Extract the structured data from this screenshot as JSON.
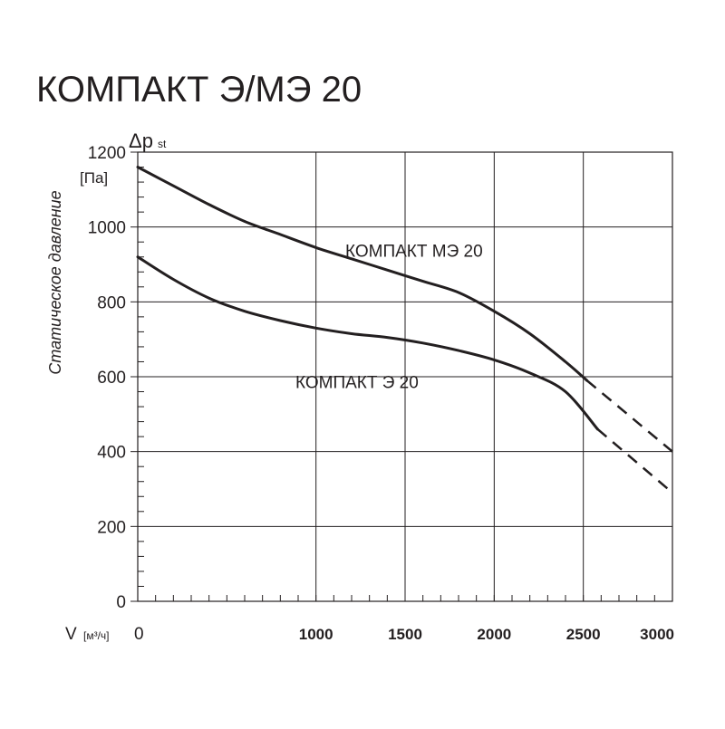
{
  "page": {
    "title": "КОМПАКТ Э/МЭ 20"
  },
  "chart_data": {
    "type": "line",
    "title": "КОМПАКТ Э/МЭ 20",
    "y_axis": {
      "symbol": "Δp",
      "symbol_subscript": "st",
      "unit": "[Па]",
      "label": "Статическое давление",
      "range": [
        0,
        1200
      ],
      "ticks": [
        0,
        200,
        400,
        600,
        800,
        1000,
        1200
      ],
      "tick_labels": [
        "0",
        "200",
        "400",
        "600",
        "800",
        "1000",
        "1200"
      ],
      "minor_step": 40
    },
    "x_axis": {
      "symbol": "V",
      "unit": "[м³/ч]",
      "range": [
        0,
        3000
      ],
      "ticks": [
        0,
        1000,
        1500,
        2000,
        2500,
        3000
      ],
      "tick_labels": [
        "0",
        "1000",
        "1500",
        "2000",
        "2500",
        "3000"
      ],
      "minor_step": 100
    },
    "grid": true,
    "series": [
      {
        "name": "КОМПАКТ МЭ 20",
        "color": "#231f20",
        "points": [
          [
            0,
            1160
          ],
          [
            200,
            1110
          ],
          [
            400,
            1060
          ],
          [
            600,
            1015
          ],
          [
            800,
            980
          ],
          [
            1000,
            945
          ],
          [
            1200,
            915
          ],
          [
            1400,
            885
          ],
          [
            1600,
            855
          ],
          [
            1800,
            825
          ],
          [
            2000,
            775
          ],
          [
            2200,
            715
          ],
          [
            2400,
            640
          ],
          [
            2520,
            590
          ]
        ],
        "extrapolated_points": [
          [
            2520,
            590
          ],
          [
            3000,
            400
          ]
        ]
      },
      {
        "name": "КОМПАКТ Э 20",
        "color": "#231f20",
        "points": [
          [
            0,
            920
          ],
          [
            200,
            860
          ],
          [
            400,
            810
          ],
          [
            600,
            775
          ],
          [
            800,
            750
          ],
          [
            1000,
            730
          ],
          [
            1200,
            715
          ],
          [
            1400,
            705
          ],
          [
            1600,
            690
          ],
          [
            1800,
            670
          ],
          [
            2000,
            645
          ],
          [
            2200,
            610
          ],
          [
            2400,
            560
          ],
          [
            2580,
            460
          ]
        ],
        "extrapolated_points": [
          [
            2580,
            460
          ],
          [
            3000,
            290
          ]
        ]
      }
    ]
  }
}
